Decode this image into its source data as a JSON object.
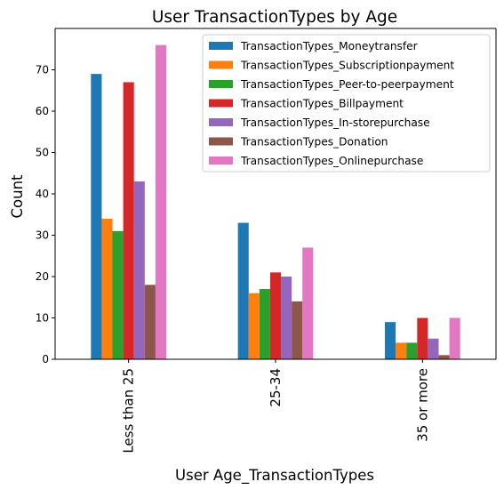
{
  "chart_data": {
    "type": "bar",
    "title": "User TransactionTypes by Age",
    "xlabel": "User Age_TransactionTypes",
    "ylabel": "Count",
    "categories": [
      "Less than 25",
      "25-34",
      "35 or more"
    ],
    "ylim": [
      0,
      80
    ],
    "yticks": [
      0,
      10,
      20,
      30,
      40,
      50,
      60,
      70
    ],
    "grid": false,
    "legend_position": "top-right",
    "series": [
      {
        "name": "TransactionTypes_Moneytransfer",
        "color": "#1f77b4",
        "values": [
          69,
          33,
          9
        ]
      },
      {
        "name": "TransactionTypes_Subscriptionpayment",
        "color": "#ff7f0e",
        "values": [
          34,
          16,
          4
        ]
      },
      {
        "name": "TransactionTypes_Peer-to-peerpayment",
        "color": "#2ca02c",
        "values": [
          31,
          17,
          4
        ]
      },
      {
        "name": "TransactionTypes_Billpayment",
        "color": "#d62728",
        "values": [
          67,
          21,
          10
        ]
      },
      {
        "name": "TransactionTypes_In-storepurchase",
        "color": "#9467bd",
        "values": [
          43,
          20,
          5
        ]
      },
      {
        "name": "TransactionTypes_Donation",
        "color": "#8c564b",
        "values": [
          18,
          14,
          1
        ]
      },
      {
        "name": "TransactionTypes_Onlinepurchase",
        "color": "#e377c2",
        "values": [
          76,
          27,
          10
        ]
      }
    ]
  }
}
